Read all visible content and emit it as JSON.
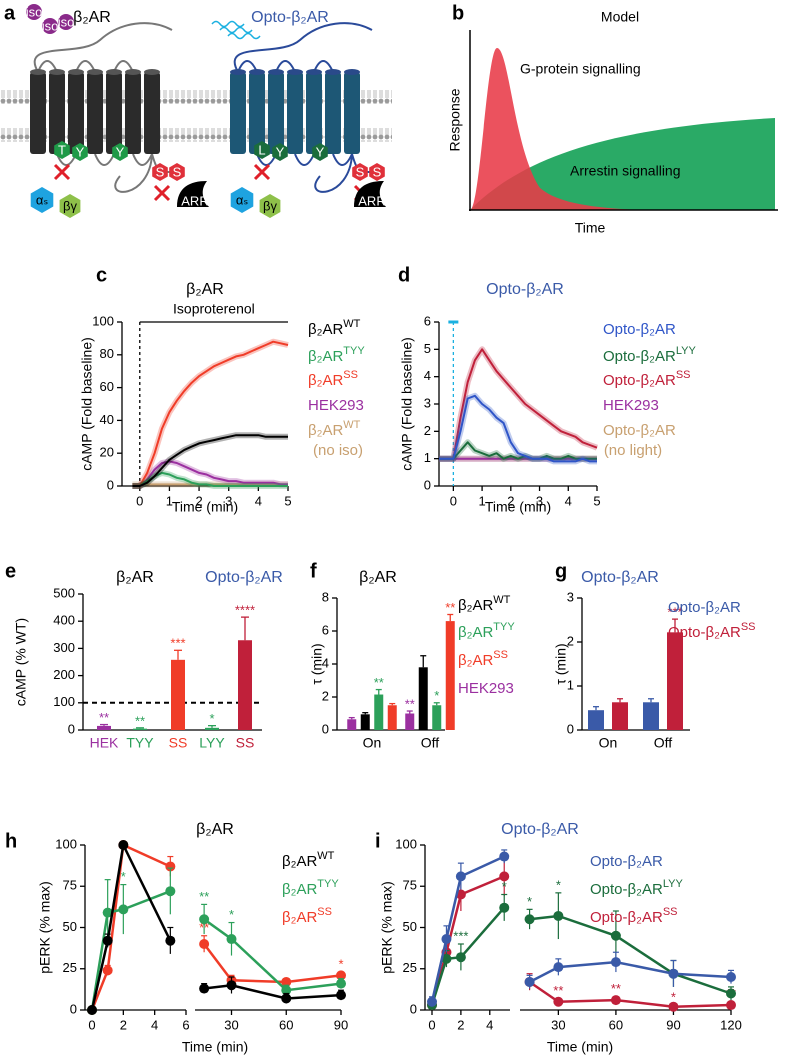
{
  "panel_labels": [
    "a",
    "b",
    "c",
    "d",
    "e",
    "f",
    "g",
    "h",
    "i"
  ],
  "diagram": {
    "receptors": [
      {
        "label": "β₂AR",
        "color": "#000000",
        "residues": [
          "T",
          "Y",
          "Y",
          "S",
          "S"
        ],
        "g_alpha": "αₛ",
        "g_beta_gamma": "βγ",
        "arrestin": "ARR"
      },
      {
        "label": "Opto-β₂AR",
        "color": "#3a5aa8",
        "residues": [
          "L",
          "Y",
          "Y",
          "S",
          "S"
        ],
        "g_alpha": "αₛ",
        "g_beta_gamma": "βγ",
        "arrestin": "ARR"
      }
    ],
    "ligands": [
      "iso",
      "iso",
      "iso"
    ]
  },
  "model": {
    "title": "Model",
    "curves": [
      "G-protein signalling",
      "Arrestin signalling"
    ],
    "y_label": "Response",
    "x_label": "Time"
  },
  "chart_data": [
    {
      "type": "line",
      "title": "β₂AR",
      "title_color": "#000000",
      "annotation": "Isoproterenol",
      "stimulus_time": 0,
      "stimulus_color": "#000000",
      "y_label": "cAMP (Fold baseline)",
      "x_label": "Time (min)",
      "xlim": [
        -0.6,
        5
      ],
      "xticks": [
        0,
        1,
        2,
        3,
        4,
        5
      ],
      "ylim": [
        0,
        100
      ],
      "yticks": [
        0,
        20,
        40,
        60,
        80,
        100
      ],
      "x": [
        -0.25,
        0,
        0.25,
        0.5,
        0.75,
        1,
        1.25,
        1.5,
        1.75,
        2,
        2.25,
        2.5,
        2.75,
        3,
        3.25,
        3.5,
        3.75,
        4,
        4.25,
        4.5,
        4.75,
        5
      ],
      "series": [
        {
          "name": "β₂AR",
          "variant": "WT",
          "color": "#000000",
          "values": [
            0,
            0,
            2,
            6,
            11,
            16,
            19,
            22,
            24,
            26,
            27,
            28,
            29,
            30,
            31,
            31,
            31,
            31,
            30,
            30,
            30,
            30
          ]
        },
        {
          "name": "β₂AR",
          "variant": "TYY",
          "color": "#2ca05a",
          "values": [
            0,
            0,
            3,
            6,
            8,
            7,
            5,
            4,
            2,
            1,
            1,
            0,
            0,
            0,
            0,
            0,
            0,
            0,
            0,
            0,
            0,
            0
          ]
        },
        {
          "name": "β₂AR",
          "variant": "SS",
          "color": "#f03c28",
          "values": [
            0,
            0,
            8,
            20,
            35,
            45,
            52,
            58,
            63,
            67,
            70,
            73,
            75,
            77,
            79,
            80,
            82,
            84,
            86,
            88,
            87,
            86
          ]
        },
        {
          "name": "HEK293",
          "color": "#9b30a0",
          "values": [
            0,
            0,
            4,
            10,
            14,
            15,
            14,
            12,
            10,
            8,
            7,
            5,
            4,
            3,
            3,
            2,
            2,
            2,
            2,
            2,
            1,
            1
          ]
        },
        {
          "name": "β₂AR",
          "variant": "WT",
          "note": "(no iso)",
          "color": "#c8a070",
          "values": [
            1,
            1,
            1,
            1,
            1,
            1,
            1,
            1,
            1,
            1,
            1,
            1,
            1,
            1,
            1,
            1,
            1,
            1,
            1,
            1,
            1,
            1
          ]
        }
      ]
    },
    {
      "type": "line",
      "title": "Opto-β₂AR",
      "title_color": "#3a5aa8",
      "stimulus_time": 0,
      "stimulus_color": "#1ab0e0",
      "y_label": "cAMP (Fold baseline)",
      "x_label": "Time (min)",
      "xlim": [
        -0.5,
        5
      ],
      "xticks": [
        0,
        1,
        2,
        3,
        4,
        5
      ],
      "ylim": [
        0,
        6
      ],
      "yticks": [
        0,
        1,
        2,
        3,
        4,
        5,
        6
      ],
      "x": [
        -0.5,
        -0.25,
        0,
        0.25,
        0.5,
        0.75,
        1,
        1.25,
        1.5,
        1.75,
        2,
        2.25,
        2.5,
        2.75,
        3,
        3.25,
        3.5,
        3.75,
        4,
        4.25,
        4.5,
        4.75,
        5
      ],
      "series": [
        {
          "name": "Opto-β₂AR",
          "color": "#2f55c8",
          "values": [
            1,
            1,
            1,
            2.0,
            3.2,
            3.3,
            3.0,
            2.8,
            2.5,
            2.3,
            1.6,
            1.2,
            1.1,
            1.0,
            1.0,
            1.0,
            0.9,
            0.9,
            0.9,
            0.9,
            1.0,
            0.9,
            0.9
          ]
        },
        {
          "name": "Opto-β₂AR",
          "variant": "LYY",
          "color": "#1b6d3c",
          "values": [
            1,
            1,
            1,
            1.3,
            1.6,
            1.3,
            1.2,
            1.1,
            1.2,
            1.0,
            1.1,
            1.0,
            1.1,
            1.0,
            1.0,
            1.1,
            1.0,
            1.0,
            1.1,
            1.0,
            1.0,
            1.0,
            1.0
          ]
        },
        {
          "name": "Opto-β₂AR",
          "variant": "SS",
          "color": "#c0203a",
          "values": [
            1,
            1,
            1,
            2.5,
            3.8,
            4.6,
            5.0,
            4.6,
            4.2,
            3.9,
            3.6,
            3.3,
            3.0,
            2.8,
            2.6,
            2.4,
            2.2,
            2.0,
            1.9,
            1.8,
            1.6,
            1.5,
            1.4
          ]
        },
        {
          "name": "HEK293",
          "color": "#9b30a0",
          "values": [
            1,
            1,
            1,
            1,
            1,
            1,
            1,
            1,
            1,
            1,
            1,
            1,
            1,
            1,
            1,
            1,
            1,
            1,
            1,
            1,
            1,
            1,
            1
          ]
        },
        {
          "name": "Opto-β₂AR",
          "note": "(no light)",
          "color": "#c8a070",
          "values": [
            1,
            1,
            1,
            1,
            1,
            1,
            1,
            1,
            1,
            1,
            1,
            1,
            1,
            1,
            1,
            1,
            1,
            1,
            1,
            1,
            1,
            1,
            1
          ]
        }
      ]
    },
    {
      "type": "bar",
      "group_labels": [
        "β₂AR",
        "Opto-β₂AR"
      ],
      "group_label_colors": [
        "#000000",
        "#3a5aa8"
      ],
      "y_label": "cAMP (% WT)",
      "ylim": [
        0,
        500
      ],
      "yticks": [
        0,
        100,
        200,
        300,
        400,
        500
      ],
      "reference": 100,
      "categories": [
        "HEK",
        "TYY",
        "SS",
        "LYY",
        "SS"
      ],
      "values": [
        15,
        5,
        258,
        8,
        330
      ],
      "errors": [
        5,
        3,
        35,
        8,
        85
      ],
      "colors": [
        "#9b30a0",
        "#2ca05a",
        "#f03c28",
        "#2ca05a",
        "#c0203a"
      ],
      "significance": [
        "**",
        "**",
        "***",
        "*",
        "****"
      ]
    },
    {
      "type": "grouped_bar",
      "title": "β₂AR",
      "title_color": "#000000",
      "y_label": "τ (min)",
      "ylim": [
        0,
        8
      ],
      "yticks": [
        0,
        2,
        4,
        6,
        8
      ],
      "categories": [
        "On",
        "Off"
      ],
      "series": [
        {
          "name": "β₂AR",
          "variant": "WT",
          "color": "#000000",
          "values": [
            0.95,
            3.8
          ],
          "errors": [
            0.1,
            0.7
          ],
          "significance": [
            null,
            null
          ]
        },
        {
          "name": "β₂AR",
          "variant": "TYY",
          "color": "#2ca05a",
          "values": [
            2.15,
            1.5
          ],
          "errors": [
            0.3,
            0.15
          ],
          "significance": [
            "**",
            "*"
          ]
        },
        {
          "name": "β₂AR",
          "variant": "SS",
          "color": "#f03c28",
          "values": [
            1.5,
            6.6
          ],
          "errors": [
            0.1,
            0.4
          ],
          "significance": [
            null,
            "**"
          ]
        },
        {
          "name": "HEK293",
          "color": "#9b30a0",
          "values": [
            0.65,
            1.0
          ],
          "errors": [
            0.1,
            0.15
          ],
          "significance": [
            null,
            "**"
          ]
        }
      ]
    },
    {
      "type": "grouped_bar",
      "title": "Opto-β₂AR",
      "title_color": "#3a5aa8",
      "y_label": "τ (min)",
      "ylim": [
        0,
        3
      ],
      "yticks": [
        0,
        1,
        2,
        3
      ],
      "categories": [
        "On",
        "Off"
      ],
      "series": [
        {
          "name": "Opto-β₂AR",
          "color": "#3a5aa8",
          "values": [
            0.45,
            0.63
          ],
          "errors": [
            0.08,
            0.08
          ],
          "significance": [
            null,
            null
          ]
        },
        {
          "name": "Opto-β₂AR",
          "variant": "SS",
          "color": "#c0203a",
          "values": [
            0.63,
            2.22
          ],
          "errors": [
            0.08,
            0.3
          ],
          "significance": [
            null,
            "***"
          ]
        }
      ]
    },
    {
      "type": "broken_line",
      "title": "β₂AR",
      "title_color": "#000000",
      "y_label": "pERK (% max)",
      "x_label": "Time (min)",
      "ylim": [
        0,
        100
      ],
      "yticks": [
        0,
        25,
        50,
        75,
        100
      ],
      "segments": [
        {
          "xlim": [
            0,
            6
          ],
          "xticks": [
            0,
            2,
            4,
            6
          ]
        },
        {
          "xlim": [
            10,
            90
          ],
          "xticks": [
            30,
            60,
            90
          ]
        }
      ],
      "x": [
        0,
        1,
        2,
        5,
        15,
        30,
        60,
        90
      ],
      "series": [
        {
          "name": "β₂AR",
          "variant": "WT",
          "color": "#000000",
          "values": [
            0,
            42,
            100,
            42,
            13,
            15,
            7,
            9
          ],
          "errors": [
            1,
            4,
            2,
            8,
            3,
            5,
            3,
            3
          ],
          "significance": [
            null,
            null,
            null,
            null,
            null,
            null,
            null,
            null
          ]
        },
        {
          "name": "β₂AR",
          "variant": "TYY",
          "color": "#2ca05a",
          "values": [
            0,
            59,
            61,
            72,
            55,
            43,
            12,
            16
          ],
          "errors": [
            1,
            20,
            15,
            14,
            9,
            10,
            3,
            3
          ],
          "significance": [
            null,
            null,
            "*",
            null,
            "**",
            "*",
            null,
            null
          ]
        },
        {
          "name": "β₂AR",
          "variant": "SS",
          "color": "#f03c28",
          "values": [
            0,
            24,
            100,
            87,
            40,
            18,
            17,
            21
          ],
          "errors": [
            1,
            3,
            2,
            6,
            5,
            3,
            2,
            2
          ],
          "significance": [
            null,
            null,
            null,
            null,
            "**",
            null,
            null,
            "*"
          ]
        }
      ]
    },
    {
      "type": "broken_line",
      "title": "Opto-β₂AR",
      "title_color": "#3a5aa8",
      "y_label": "pERK (% max)",
      "x_label": "Time (min)",
      "ylim": [
        0,
        100
      ],
      "yticks": [
        0,
        25,
        50,
        75,
        100
      ],
      "segments": [
        {
          "xlim": [
            0,
            5.4
          ],
          "xticks": [
            0,
            2,
            4
          ]
        },
        {
          "xlim": [
            10,
            120
          ],
          "xticks": [
            30,
            60,
            90,
            120
          ]
        }
      ],
      "x": [
        0,
        1,
        2,
        5,
        15,
        30,
        60,
        90,
        120
      ],
      "series": [
        {
          "name": "Opto-β₂AR",
          "color": "#3a5aa8",
          "values": [
            5,
            43,
            81,
            93,
            17,
            26,
            29,
            22,
            20
          ],
          "errors": [
            3,
            8,
            8,
            4,
            4,
            5,
            6,
            8,
            4
          ],
          "significance": [
            null,
            null,
            null,
            null,
            null,
            null,
            null,
            null,
            null
          ]
        },
        {
          "name": "Opto-β₂AR",
          "variant": "LYY",
          "color": "#1b6d3c",
          "values": [
            3,
            31,
            32,
            62,
            55,
            57,
            45,
            22,
            10
          ],
          "errors": [
            2,
            5,
            8,
            8,
            6,
            14,
            15,
            8,
            4
          ],
          "significance": [
            null,
            "*",
            "***",
            "*",
            "*",
            "*",
            null,
            null,
            null
          ]
        },
        {
          "name": "Opto-β₂AR",
          "variant": "SS",
          "color": "#c0203a",
          "values": [
            3,
            35,
            70,
            81,
            17,
            5,
            6,
            2,
            3
          ],
          "errors": [
            2,
            8,
            10,
            12,
            5,
            2,
            2,
            1,
            2
          ],
          "significance": [
            null,
            null,
            null,
            null,
            null,
            "**",
            "**",
            "*",
            "**"
          ]
        }
      ]
    }
  ]
}
